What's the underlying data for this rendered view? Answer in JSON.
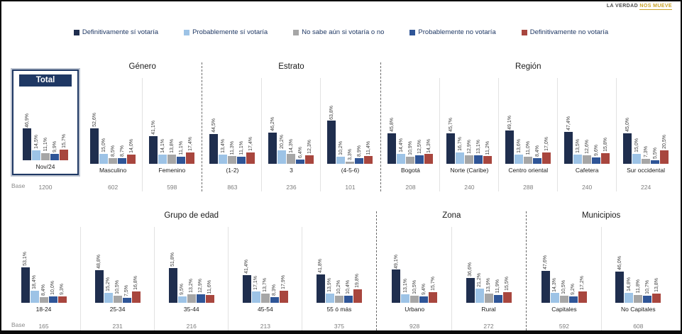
{
  "logo": {
    "part1": "LA VERDAD",
    "part2": "NOS MUEVE"
  },
  "base_label": "Base",
  "chart_data": {
    "type": "bar",
    "unit": "%",
    "value_format": "comma-decimal percent",
    "legend": [
      {
        "label": "Definitivamente sí votaría",
        "color": "#1F2E4E"
      },
      {
        "label": "Probablemente sí votaría",
        "color": "#9DC3E6"
      },
      {
        "label": "No sabe aún si votaría o no",
        "color": "#A6A6A6"
      },
      {
        "label": "Probablemente no votaría",
        "color": "#2F5597"
      },
      {
        "label": "Definitivamente no votaría",
        "color": "#A8463E"
      }
    ],
    "rows": [
      {
        "sections": [
          {
            "title": "Total",
            "boxed": true,
            "charts": [
              {
                "label": "Nov/24",
                "base": 1200,
                "values": [
                  46.9,
                  14.5,
                  11.1,
                  9.9,
                  15.7
                ]
              }
            ]
          },
          {
            "title": "Género",
            "charts": [
              {
                "label": "Masculino",
                "base": 602,
                "values": [
                  52.6,
                  15.0,
                  8.5,
                  8.7,
                  14.0
                ]
              },
              {
                "label": "Femenino",
                "base": 598,
                "values": [
                  41.1,
                  14.1,
                  13.8,
                  11.1,
                  17.4
                ]
              }
            ]
          },
          {
            "title": "Estrato",
            "charts": [
              {
                "label": "(1-2)",
                "base": 863,
                "values": [
                  44.5,
                  13.4,
                  11.3,
                  11.1,
                  17.4
                ]
              },
              {
                "label": "3",
                "base": 236,
                "values": [
                  46.2,
                  20.2,
                  14.3,
                  6.4,
                  12.3
                ]
              },
              {
                "label": "(4-5-6)",
                "base": 101,
                "values": [
                  63.8,
                  10.2,
                  3.3,
                  8.9,
                  11.4
                ]
              }
            ]
          },
          {
            "title": "Región",
            "charts": [
              {
                "label": "Bogotá",
                "base": 208,
                "values": [
                  45.8,
                  14.4,
                  10.9,
                  12.5,
                  14.3
                ]
              },
              {
                "label": "Norte (Caribe)",
                "base": 240,
                "values": [
                  45.7,
                  16.7,
                  12.9,
                  13.1,
                  11.2
                ]
              },
              {
                "label": "Centro oriental",
                "base": 288,
                "values": [
                  49.1,
                  13.6,
                  11.0,
                  8.4,
                  17.0
                ]
              },
              {
                "label": "Cafetera",
                "base": 240,
                "values": [
                  47.4,
                  13.5,
                  12.6,
                  9.6,
                  15.8
                ]
              },
              {
                "label": "Sur occidental",
                "base": 224,
                "values": [
                  45.0,
                  15.0,
                  7.3,
                  5.5,
                  20.5
                ]
              }
            ]
          }
        ]
      },
      {
        "sections": [
          {
            "title": "Grupo de edad",
            "charts": [
              {
                "label": "18-24",
                "base": 165,
                "values": [
                  53.1,
                  18.4,
                  8.4,
                  10.0,
                  9.3
                ]
              },
              {
                "label": "25-34",
                "base": 231,
                "values": [
                  48.8,
                  15.2,
                  10.5,
                  7.5,
                  16.8
                ]
              },
              {
                "label": "35-44",
                "base": 216,
                "values": [
                  51.8,
                  9.5,
                  13.2,
                  12.9,
                  11.6
                ]
              },
              {
                "label": "45-54",
                "base": 213,
                "values": [
                  41.4,
                  17.1,
                  13.7,
                  8.3,
                  17.9
                ]
              },
              {
                "label": "55 ó más",
                "base": 375,
                "values": [
                  41.8,
                  13.9,
                  10.2,
                  10.4,
                  19.8
                ]
              }
            ]
          },
          {
            "title": "Zona",
            "charts": [
              {
                "label": "Urbano",
                "base": 928,
                "values": [
                  49.1,
                  13.1,
                  10.5,
                  9.4,
                  15.7
                ]
              },
              {
                "label": "Rural",
                "base": 272,
                "values": [
                  36.6,
                  21.2,
                  13.9,
                  11.9,
                  15.5
                ]
              }
            ]
          },
          {
            "title": "Municipios",
            "charts": [
              {
                "label": "Capitales",
                "base": 592,
                "values": [
                  47.6,
                  14.3,
                  10.5,
                  9.2,
                  17.2
                ]
              },
              {
                "label": "No Capitales",
                "base": 608,
                "values": [
                  46.0,
                  14.8,
                  11.8,
                  10.7,
                  13.8
                ]
              }
            ]
          }
        ]
      }
    ]
  }
}
